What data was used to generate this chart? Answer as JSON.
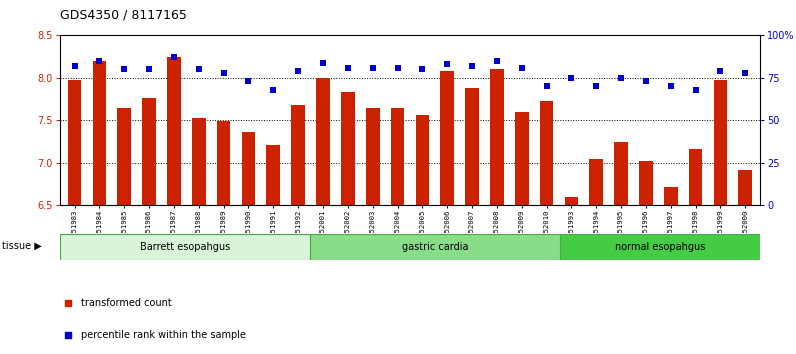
{
  "title": "GDS4350 / 8117165",
  "samples": [
    "GSM851983",
    "GSM851984",
    "GSM851985",
    "GSM851986",
    "GSM851987",
    "GSM851988",
    "GSM851989",
    "GSM851990",
    "GSM851991",
    "GSM851992",
    "GSM852001",
    "GSM852002",
    "GSM852003",
    "GSM852004",
    "GSM852005",
    "GSM852006",
    "GSM852007",
    "GSM852008",
    "GSM852009",
    "GSM852010",
    "GSM851993",
    "GSM851994",
    "GSM851995",
    "GSM851996",
    "GSM851997",
    "GSM851998",
    "GSM851999",
    "GSM852000"
  ],
  "bar_values": [
    7.98,
    8.2,
    7.65,
    7.76,
    8.25,
    7.53,
    7.49,
    7.36,
    7.21,
    7.68,
    8.0,
    7.83,
    7.65,
    7.65,
    7.56,
    8.08,
    7.88,
    8.1,
    7.6,
    7.73,
    6.6,
    7.05,
    7.25,
    7.02,
    6.72,
    7.16,
    7.98,
    6.92
  ],
  "dot_values": [
    82,
    85,
    80,
    80,
    87,
    80,
    78,
    73,
    68,
    79,
    84,
    81,
    81,
    81,
    80,
    83,
    82,
    85,
    81,
    70,
    75,
    70,
    75,
    73,
    70,
    68,
    79,
    78
  ],
  "groups": [
    {
      "label": "Barrett esopahgus",
      "start": 0,
      "end": 9,
      "color_face": "#d9f5d9",
      "color_edge": "#44aa44"
    },
    {
      "label": "gastric cardia",
      "start": 10,
      "end": 19,
      "color_face": "#88dd88",
      "color_edge": "#44aa44"
    },
    {
      "label": "normal esopahgus",
      "start": 20,
      "end": 27,
      "color_face": "#44cc44",
      "color_edge": "#44aa44"
    }
  ],
  "ylim_left": [
    6.5,
    8.5
  ],
  "ylim_right": [
    0,
    100
  ],
  "bar_color": "#cc2200",
  "dot_color": "#0000cc",
  "bar_bottom": 6.5,
  "yticks_left": [
    6.5,
    7.0,
    7.5,
    8.0,
    8.5
  ],
  "yticks_right": [
    0,
    25,
    50,
    75,
    100
  ],
  "ytick_labels_right": [
    "0",
    "25",
    "50",
    "75",
    "100%"
  ],
  "hlines": [
    7.0,
    7.5,
    8.0
  ],
  "background_color": "#ffffff"
}
